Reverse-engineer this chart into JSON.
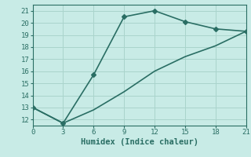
{
  "line1_x": [
    0,
    3,
    6,
    9,
    12,
    15,
    18,
    21
  ],
  "line1_y": [
    13,
    11.7,
    15.7,
    20.5,
    21.0,
    20.1,
    19.5,
    19.3
  ],
  "line2_x": [
    0,
    3,
    6,
    9,
    12,
    15,
    18,
    21
  ],
  "line2_y": [
    13,
    11.7,
    12.8,
    14.3,
    16.0,
    17.2,
    18.1,
    19.3
  ],
  "line_color": "#2a6e64",
  "bg_color": "#c8ebe6",
  "grid_color": "#aad4cc",
  "xlabel": "Humidex (Indice chaleur)",
  "xlabel_fontsize": 7.5,
  "xticks": [
    0,
    3,
    6,
    9,
    12,
    15,
    18,
    21
  ],
  "yticks": [
    12,
    13,
    14,
    15,
    16,
    17,
    18,
    19,
    20,
    21
  ],
  "xlim": [
    0,
    21
  ],
  "ylim": [
    11.5,
    21.5
  ],
  "marker": "D",
  "marker_size": 3,
  "linewidth": 1.2,
  "tick_fontsize": 6.5
}
